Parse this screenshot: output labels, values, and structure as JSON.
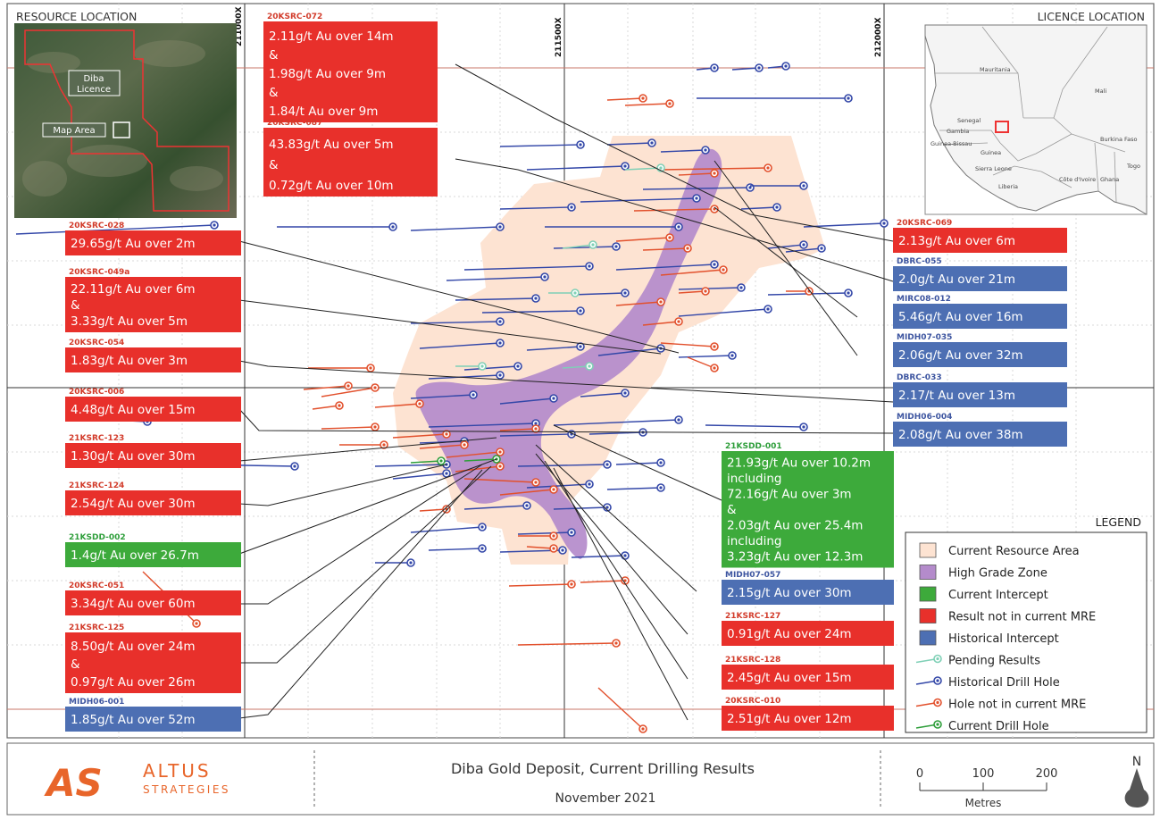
{
  "map_labels": {
    "resource_location": "RESOURCE LOCATION",
    "licence_location": "LICENCE LOCATION",
    "diba_licence": [
      "Diba",
      "Licence"
    ],
    "map_area": "Map Area",
    "grid_x": [
      "211000X",
      "211500X",
      "212000X"
    ],
    "countries": [
      "Mauritania",
      "Mali",
      "Senegal",
      "Gambia",
      "Guinea-Bissau",
      "Guinea",
      "Burkina Faso",
      "Sierra Leone",
      "Liberia",
      "Côte d'Ivoire",
      "Ghana",
      "Togo"
    ]
  },
  "colors": {
    "red": "#e8302b",
    "blue": "#4d6fb3",
    "green": "#3daa3b",
    "resource": "#fde3d2",
    "high_grade": "#b48bcb",
    "pending": "#7fd0b6",
    "hist_hole": "#3347a8",
    "mre_hole": "#e2502c",
    "current_hole": "#2e9e3a"
  },
  "callouts": [
    {
      "id": "20KSRC-072",
      "type": "red",
      "lines": [
        "2.11g/t Au over 14m",
        "&",
        "1.98g/t Au over 9m",
        "&",
        "1.84/t Au over 9m"
      ]
    },
    {
      "id": "20KSRC-087",
      "type": "red",
      "lines": [
        "43.83g/t Au over 5m",
        "&",
        "0.72g/t Au over 10m"
      ]
    },
    {
      "id": "20KSRC-028",
      "type": "red",
      "lines": [
        "29.65g/t Au over 2m"
      ]
    },
    {
      "id": "20KSRC-049a",
      "type": "red",
      "lines": [
        "22.11g/t Au over 6m",
        "&",
        "3.33g/t Au over 5m"
      ]
    },
    {
      "id": "20KSRC-054",
      "type": "red",
      "lines": [
        "1.83g/t Au over 3m"
      ]
    },
    {
      "id": "20KSRC-006",
      "type": "red",
      "lines": [
        "4.48g/t Au over 15m"
      ]
    },
    {
      "id": "21KSRC-123",
      "type": "red",
      "lines": [
        "1.30g/t Au over 30m"
      ]
    },
    {
      "id": "21KSRC-124",
      "type": "red",
      "lines": [
        "2.54g/t Au over 30m"
      ]
    },
    {
      "id": "21KSDD-002",
      "type": "green",
      "lines": [
        "1.4g/t Au over 26.7m"
      ]
    },
    {
      "id": "20KSRC-051",
      "type": "red",
      "lines": [
        "3.34g/t Au over 60m"
      ]
    },
    {
      "id": "21KSRC-125",
      "type": "red",
      "lines": [
        "8.50g/t Au over 24m",
        "&",
        "0.97g/t Au over 26m"
      ]
    },
    {
      "id": "MIDH06-001",
      "type": "blue",
      "lines": [
        "1.85g/t Au over 52m"
      ]
    },
    {
      "id": "20KSRC-069",
      "type": "red",
      "lines": [
        "2.13g/t Au over 6m"
      ]
    },
    {
      "id": "DBRC-055",
      "type": "blue",
      "lines": [
        "2.0g/t Au over 21m"
      ]
    },
    {
      "id": "MIRC08-012",
      "type": "blue",
      "lines": [
        "5.46g/t Au over 16m"
      ]
    },
    {
      "id": "MIDH07-035",
      "type": "blue",
      "lines": [
        "2.06g/t Au over 32m"
      ]
    },
    {
      "id": "DBRC-033",
      "type": "blue",
      "lines": [
        "2.17/t Au over 13m"
      ]
    },
    {
      "id": "MIDH06-004",
      "type": "blue",
      "lines": [
        "2.08g/t Au over 38m"
      ]
    },
    {
      "id": "21KSDD-001",
      "type": "green",
      "lines": [
        "21.93g/t Au over 10.2m",
        "including",
        "72.16g/t Au over 3m",
        "&",
        "2.03g/t Au over 25.4m",
        "including",
        "3.23g/t Au over 12.3m"
      ]
    },
    {
      "id": "MIDH07-057",
      "type": "blue",
      "lines": [
        "2.15g/t Au over 30m"
      ]
    },
    {
      "id": "21KSRC-127",
      "type": "red",
      "lines": [
        "0.91g/t Au over 24m"
      ]
    },
    {
      "id": "21KSRC-128",
      "type": "red",
      "lines": [
        "2.45g/t Au over 15m"
      ]
    },
    {
      "id": "20KSRC-010",
      "type": "red",
      "lines": [
        "2.51g/t Au over 12m"
      ]
    }
  ],
  "legend": {
    "title": "LEGEND",
    "items": [
      {
        "label": "Current Resource Area",
        "kind": "fill",
        "color": "#fde3d2"
      },
      {
        "label": "High Grade Zone",
        "kind": "fill",
        "color": "#b48bcb"
      },
      {
        "label": "Current Intercept",
        "kind": "fill",
        "color": "#3daa3b"
      },
      {
        "label": "Result not in current MRE",
        "kind": "fill",
        "color": "#e8302b"
      },
      {
        "label": "Historical Intercept",
        "kind": "fill",
        "color": "#4d6fb3"
      },
      {
        "label": "Pending Results",
        "kind": "hole",
        "color": "#7fd0b6"
      },
      {
        "label": "Historical Drill Hole",
        "kind": "hole",
        "color": "#3347a8"
      },
      {
        "label": "Hole not in current MRE",
        "kind": "hole",
        "color": "#e2502c"
      },
      {
        "label": "Current Drill Hole",
        "kind": "hole",
        "color": "#2e9e3a"
      }
    ]
  },
  "footer": {
    "logo_as": "AS",
    "logo_altus": "ALTUS",
    "logo_strategies": "STRATEGIES",
    "title": "Diba Gold Deposit, Current Drilling Results",
    "date": "November 2021",
    "scale_ticks": [
      "0",
      "100",
      "200"
    ],
    "scale_unit": "Metres",
    "north": "N"
  }
}
